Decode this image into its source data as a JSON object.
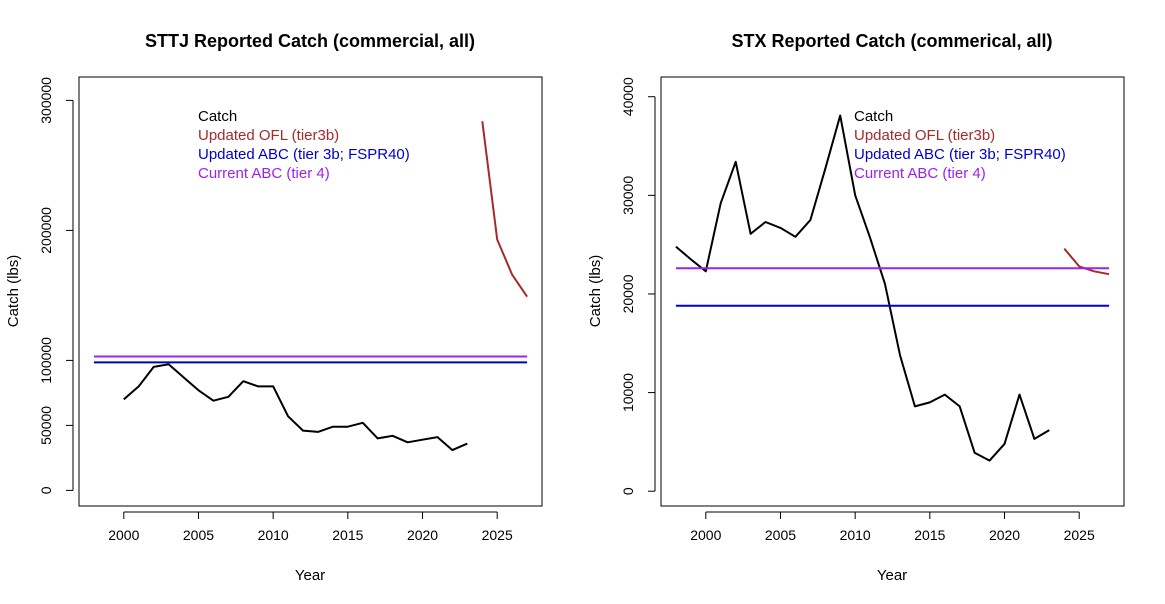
{
  "chart_data": [
    {
      "type": "line",
      "title": "STTJ Reported Catch (commercial, all)",
      "xlabel": "Year",
      "ylabel": "Catch (lbs)",
      "xlim": [
        1997,
        2028
      ],
      "ylim": [
        -12000,
        318000
      ],
      "xticks": [
        2000,
        2005,
        2010,
        2015,
        2020,
        2025
      ],
      "yticks": [
        0,
        50000,
        100000,
        200000,
        300000
      ],
      "grid": false,
      "legend_position": "top-center",
      "series": [
        {
          "name": "Catch",
          "color": "#000000",
          "x": [
            1998,
            1999,
            2000,
            2001,
            2002,
            2003,
            2004,
            2005,
            2006,
            2007,
            2008,
            2009,
            2010,
            2011,
            2012,
            2013,
            2014,
            2015,
            2016,
            2017,
            2018,
            2019,
            2020,
            2021,
            2022,
            2023
          ],
          "y": [
            null,
            null,
            70000,
            80000,
            95000,
            97000,
            87000,
            77000,
            69000,
            72000,
            84000,
            80000,
            80000,
            57000,
            46000,
            45000,
            49000,
            49000,
            52000,
            40000,
            42000,
            37000,
            39000,
            41000,
            31000,
            36000
          ]
        },
        {
          "name": "Updated OFL (tier3b)",
          "color": "#a52a2a",
          "x": [
            2024,
            2025,
            2026,
            2027
          ],
          "y": [
            284000,
            193000,
            166000,
            149000
          ]
        },
        {
          "name": "Updated ABC (tier 3b; FSPR40)",
          "color": "#0000cd",
          "x": [
            1998,
            2027
          ],
          "y": [
            98500,
            98500
          ]
        },
        {
          "name": "Current ABC (tier 4)",
          "color": "#a020f0",
          "x": [
            1998,
            2027
          ],
          "y": [
            103000,
            103000
          ]
        }
      ]
    },
    {
      "type": "line",
      "title": "STX Reported Catch (commerical, all)",
      "xlabel": "Year",
      "ylabel": "Catch (lbs)",
      "xlim": [
        1997,
        2028
      ],
      "ylim": [
        -1500,
        42000
      ],
      "xticks": [
        2000,
        2005,
        2010,
        2015,
        2020,
        2025
      ],
      "yticks": [
        0,
        10000,
        20000,
        30000,
        40000
      ],
      "grid": false,
      "legend_position": "top-center",
      "series": [
        {
          "name": "Catch",
          "color": "#000000",
          "x": [
            1998,
            1999,
            2000,
            2001,
            2002,
            2003,
            2004,
            2005,
            2006,
            2007,
            2008,
            2009,
            2010,
            2011,
            2012,
            2013,
            2014,
            2015,
            2016,
            2017,
            2018,
            2019,
            2020,
            2021,
            2022,
            2023
          ],
          "y": [
            24800,
            23500,
            22300,
            29200,
            33400,
            26100,
            27300,
            26700,
            25800,
            27500,
            32700,
            38100,
            30000,
            25700,
            21000,
            13800,
            8600,
            9000,
            9800,
            8600,
            3900,
            3100,
            4800,
            9800,
            5300,
            6200
          ]
        },
        {
          "name": "Updated OFL (tier3b)",
          "color": "#a52a2a",
          "x": [
            2024,
            2025,
            2026,
            2027
          ],
          "y": [
            24600,
            22800,
            22300,
            22000
          ]
        },
        {
          "name": "Updated ABC (tier 3b; FSPR40)",
          "color": "#0000cd",
          "x": [
            1998,
            2027
          ],
          "y": [
            18800,
            18800
          ]
        },
        {
          "name": "Current ABC (tier 4)",
          "color": "#a020f0",
          "x": [
            1998,
            2027
          ],
          "y": [
            22600,
            22600
          ]
        }
      ]
    }
  ]
}
